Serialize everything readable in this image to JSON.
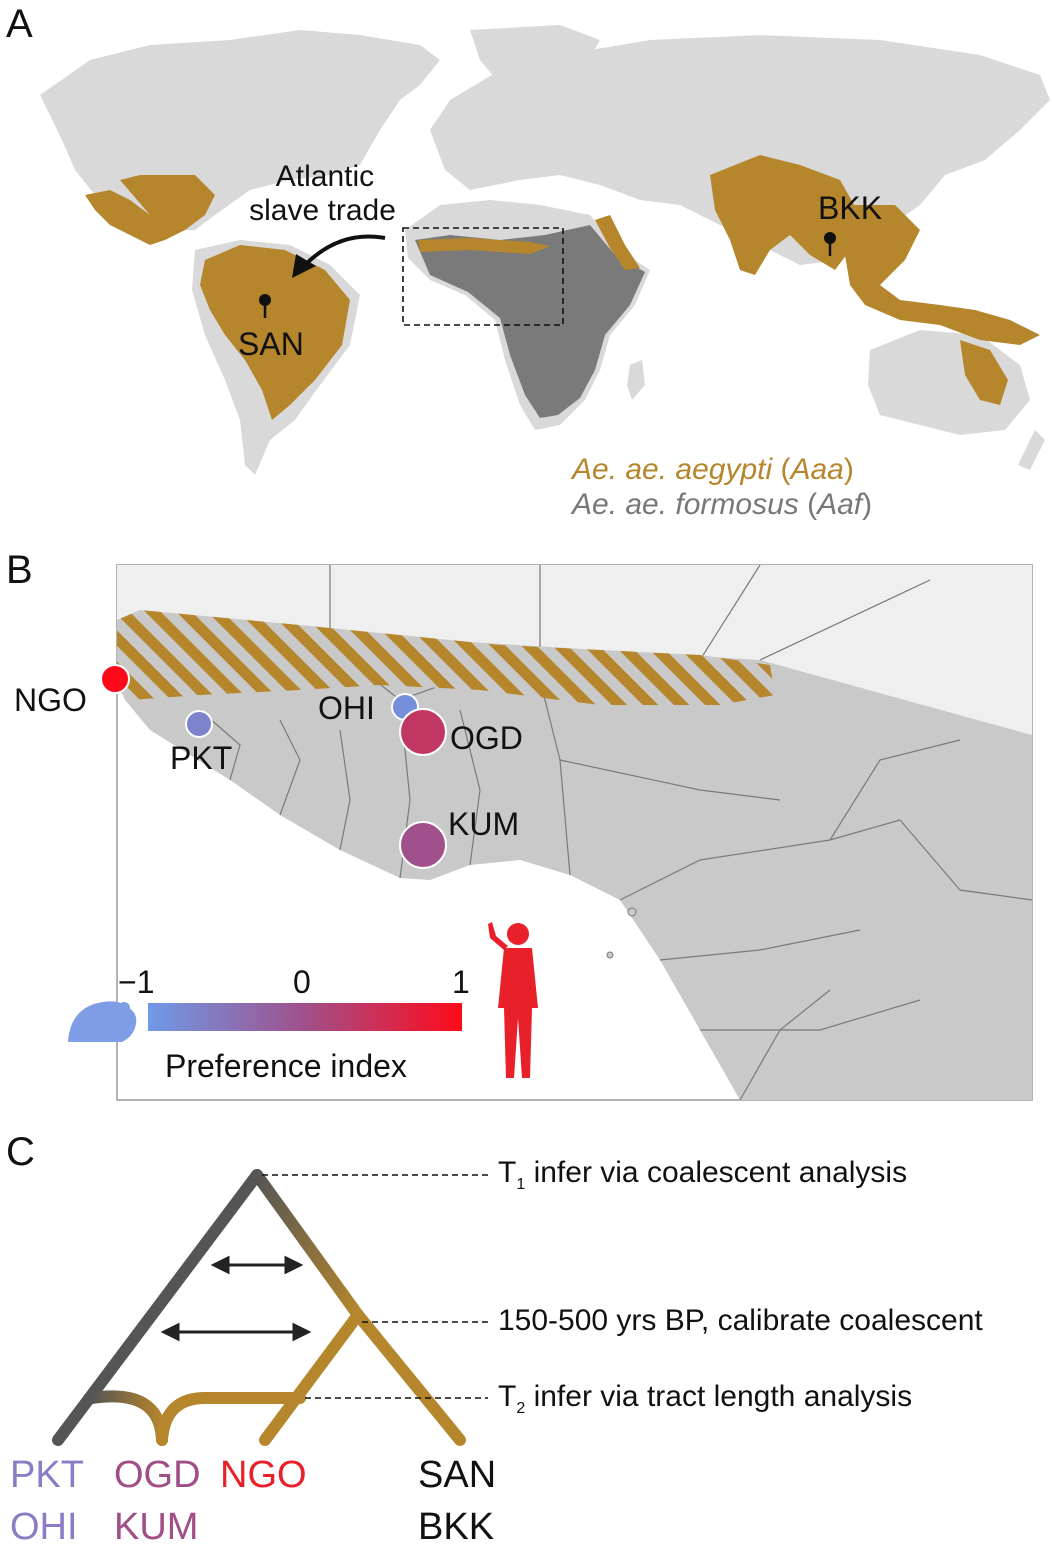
{
  "colors": {
    "aaa": "#b5862c",
    "aaf": "#7a7a7a",
    "land": "#d9d9d9",
    "pin": "#111111",
    "human": "#e8202a",
    "rodent": "#7f9de6",
    "pkt_ohi": "#8b7cc4",
    "ogd_kum": "#a04f86",
    "ngo": "#e8202a"
  },
  "panel_a": {
    "letter": "A",
    "arrow_label_line1": "Atlantic",
    "arrow_label_line2": "slave trade",
    "pin_san": "SAN",
    "pin_bkk": "BKK",
    "legend_aaa_species": "Ae. ae. aegypti",
    "legend_aaa_open": " (",
    "legend_aaa_abbr": "Aaa",
    "legend_aaa_close": ")",
    "legend_aaf_species": "Ae. ae. formosus",
    "legend_aaf_open": " (",
    "legend_aaf_abbr": "Aaf",
    "legend_aaf_close": ")"
  },
  "panel_b": {
    "letter": "B",
    "sites": [
      {
        "code": "NGO",
        "preference": 1.0
      },
      {
        "code": "PKT",
        "preference": -0.7
      },
      {
        "code": "OHI",
        "preference": -0.85
      },
      {
        "code": "OGD",
        "preference": 0.35
      },
      {
        "code": "KUM",
        "preference": 0.0
      }
    ],
    "scale_min": "−1",
    "scale_mid": "0",
    "scale_max": "1",
    "scale_title": "Preference index",
    "rodent_icon": "rodent-icon",
    "human_icon": "human-icon"
  },
  "panel_c": {
    "letter": "C",
    "t1_sym": "T",
    "t1_sub": "1",
    "t1_text": " infer via coalescent analysis",
    "calib_text": "150-500 yrs BP, calibrate coalescent",
    "t2_sym": "T",
    "t2_sub": "2",
    "t2_text": " infer via tract length analysis",
    "tips": {
      "pkt": "PKT",
      "ohi": "OHI",
      "ogd": "OGD",
      "kum": "KUM",
      "ngo": "NGO",
      "san": "SAN",
      "bkk": "BKK"
    }
  }
}
